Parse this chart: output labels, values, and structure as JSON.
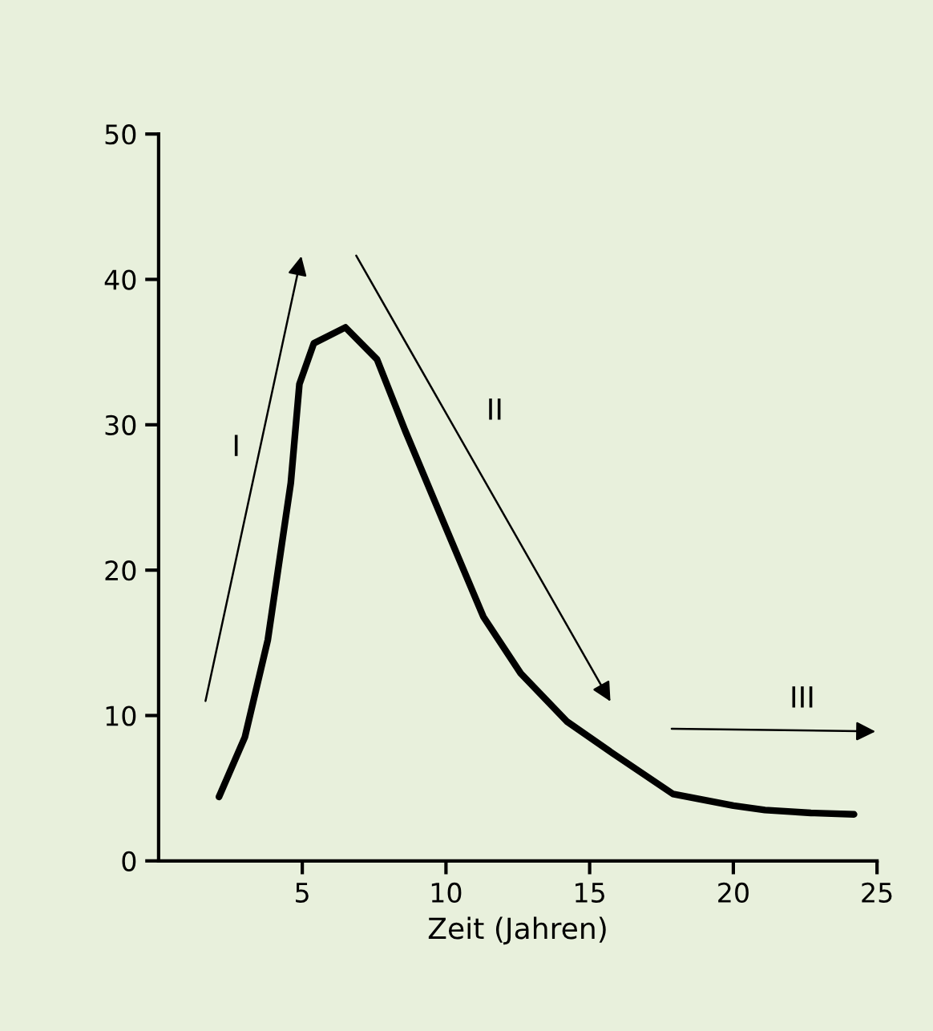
{
  "chart_data": {
    "type": "line",
    "xlabel": "Zeit (Jahren)",
    "x": [
      2.1,
      3.0,
      3.8,
      4.6,
      4.9,
      5.4,
      6.5,
      7.6,
      8.6,
      10.0,
      11.3,
      12.6,
      14.2,
      15.8,
      17.9,
      20.0,
      21.1,
      22.7,
      24.2
    ],
    "series": [
      {
        "color": "#000000",
        "values": [
          4.4,
          8.5,
          15.2,
          26.0,
          32.8,
          35.6,
          36.7,
          34.5,
          29.5,
          22.9,
          16.8,
          12.9,
          9.6,
          7.4,
          4.6,
          3.8,
          3.5,
          3.3,
          3.2
        ]
      }
    ],
    "xlim": [
      0,
      25
    ],
    "ylim": [
      0,
      50
    ],
    "xticks": [
      5,
      10,
      15,
      20,
      25
    ],
    "yticks": [
      0,
      10,
      20,
      30,
      40,
      50
    ],
    "grid": false,
    "marker": "none",
    "line_style": "solid",
    "annotations": [
      "I",
      "II",
      "III"
    ]
  }
}
